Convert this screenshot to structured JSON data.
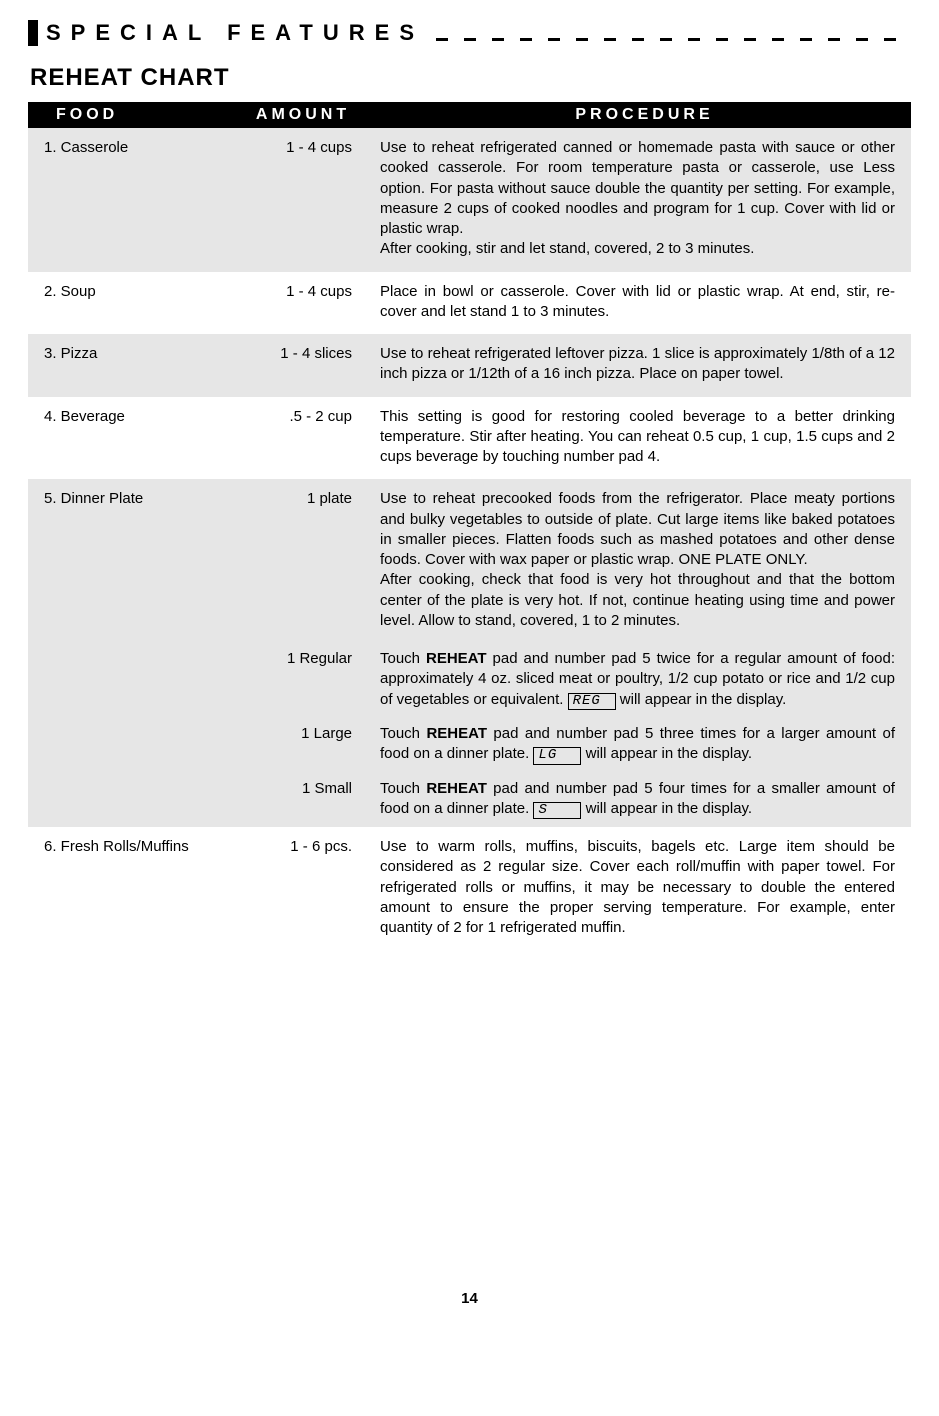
{
  "section_header": "SPECIAL FEATURES",
  "chart_title": "REHEAT CHART",
  "columns": {
    "food": "FOOD",
    "amount": "AMOUNT",
    "procedure": "PROCEDURE"
  },
  "rows": [
    {
      "food": "1.  Casserole",
      "amount": "1 - 4 cups",
      "procedure": "Use to reheat refrigerated canned or homemade pasta with sauce or other cooked casserole. For room temperature pasta or casserole, use Less option. For pasta without sauce double the quantity per setting. For example, measure 2 cups of cooked noodles and program for 1 cup. Cover with lid or plastic wrap.\nAfter cooking, stir and let stand, covered, 2 to 3 minutes.",
      "grey": true
    },
    {
      "food": "2.  Soup",
      "amount": "1 - 4 cups",
      "procedure": "Place in bowl or casserole. Cover with lid or plastic wrap. At end, stir, re-cover and let stand 1 to 3 minutes.",
      "grey": false
    },
    {
      "food": "3.  Pizza",
      "amount": "1 - 4 slices",
      "procedure": "Use to reheat refrigerated leftover pizza. 1 slice is approximately 1/8th of a 12 inch pizza or 1/12th of a 16 inch pizza. Place on paper towel.",
      "grey": true
    },
    {
      "food": "4.  Beverage",
      "amount": ".5 - 2 cup",
      "procedure": "This setting is good for restoring cooled beverage to a better drinking temperature. Stir after heating. You can reheat 0.5 cup, 1 cup, 1.5 cups and 2 cups beverage by touching number pad 4.",
      "grey": false
    },
    {
      "food": "5.  Dinner Plate",
      "amount": "1 plate",
      "procedure": "Use to reheat precooked foods from the refrigerator. Place meaty portions and bulky vegetables to outside of plate. Cut large items like baked potatoes in smaller pieces. Flatten foods such as mashed potatoes and other dense foods. Cover with wax paper or plastic wrap. ONE PLATE ONLY.\nAfter cooking, check that food is very hot throughout and that the bottom center of the plate is very hot. If not, continue heating using time and power level. Allow to stand, covered, 1 to 2 minutes.",
      "grey": true,
      "subrows": [
        {
          "amount": "1 Regular",
          "proc_pre": "Touch ",
          "proc_bold1": "REHEAT",
          "proc_mid1": " pad and number pad 5 twice for a regular amount of food: approximately 4 oz. sliced meat or poultry, 1/2 cup potato or rice and 1/2 cup of vegetables or equivalent. ",
          "display": "REG",
          "proc_post": " will appear in the display."
        },
        {
          "amount": "1 Large",
          "proc_pre": "Touch ",
          "proc_bold1": "REHEAT",
          "proc_mid1": " pad and number pad 5 three times for a larger amount of food on a dinner plate. ",
          "display": "LG",
          "proc_post": " will appear in the display."
        },
        {
          "amount": "1 Small",
          "proc_pre": "Touch ",
          "proc_bold1": "REHEAT",
          "proc_mid1": " pad and number pad 5 four times for a smaller amount of food on a dinner plate. ",
          "display": "S",
          "proc_post": " will appear in the display."
        }
      ]
    },
    {
      "food": "6.  Fresh Rolls/Muffins",
      "amount": "1 - 6 pcs.",
      "procedure": "Use to warm rolls, muffins, biscuits, bagels etc. Large item should be considered as 2 regular size. Cover each roll/muffin with paper towel. For refrigerated rolls or muffins, it may be necessary to double the entered amount to ensure the proper serving temperature. For example, enter quantity of 2 for 1 refrigerated muffin.",
      "grey": false
    }
  ],
  "page_number": "14"
}
